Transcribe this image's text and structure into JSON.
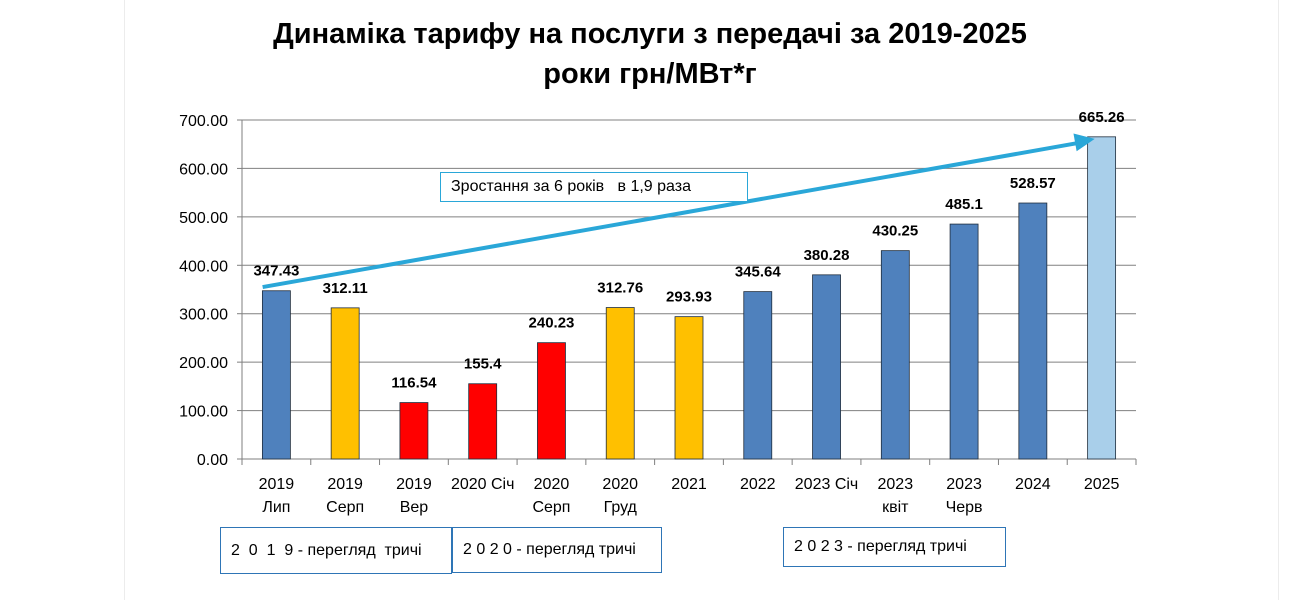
{
  "title_line1": "Динаміка тарифу  на послуги з передачі  за 2019-2025",
  "title_line2": "роки грн/МВт*г",
  "chart_data": {
    "type": "bar",
    "categories": [
      [
        "2019",
        "Лип"
      ],
      [
        "2019",
        "Серп"
      ],
      [
        "2019",
        "Вер"
      ],
      [
        "2020 Січ"
      ],
      [
        "2020",
        "Серп"
      ],
      [
        "2020",
        "Груд"
      ],
      [
        "2021"
      ],
      [
        "2022"
      ],
      [
        "2023 Січ"
      ],
      [
        "2023",
        "квіт"
      ],
      [
        "2023",
        "Черв"
      ],
      [
        "2024"
      ],
      [
        "2025"
      ]
    ],
    "values": [
      347.43,
      312.11,
      116.54,
      155.4,
      240.23,
      312.76,
      293.93,
      345.64,
      380.28,
      430.25,
      485.1,
      528.57,
      665.26
    ],
    "value_labels": [
      "347.43",
      "312.11",
      "116.54",
      "155.4",
      "240.23",
      "312.76",
      "293.93",
      "345.64",
      "380.28",
      "430.25",
      "485.1",
      "528.57",
      "665.26"
    ],
    "colors": [
      "#4f81bd",
      "#ffc000",
      "#ff0000",
      "#ff0000",
      "#ff0000",
      "#ffc000",
      "#ffc000",
      "#4f81bd",
      "#4f81bd",
      "#4f81bd",
      "#4f81bd",
      "#4f81bd",
      "#a9cfea"
    ],
    "ylim": [
      0,
      700
    ],
    "yticks": [
      "0.00",
      "100.00",
      "200.00",
      "300.00",
      "400.00",
      "500.00",
      "600.00",
      "700.00"
    ],
    "ytick_values": [
      0,
      100,
      200,
      300,
      400,
      500,
      600,
      700
    ],
    "grid": true,
    "arrow": {
      "from_value": 355,
      "to_value": 665.26,
      "color": "#2aa7d8"
    }
  },
  "annotations": {
    "growth": "Зростання за 6 років   в 1,9 раза",
    "box_2019": "2  0  1  9 - перегляд  тричі",
    "box_2020": "2 0 2 0 - перегляд тричі",
    "box_2023": "2 0 2 3 - перегляд тричі"
  }
}
